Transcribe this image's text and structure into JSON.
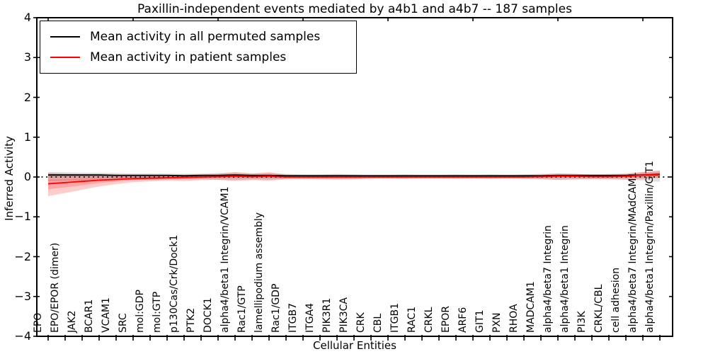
{
  "chart_data": {
    "type": "line",
    "title": "Paxillin-independent events mediated by a4b1 and a4b7 -- 187 samples",
    "xlabel": "Cellular Entities",
    "ylabel": "Inferred Activity",
    "ylim": [
      -4,
      4
    ],
    "yticks": [
      -4,
      -3,
      -2,
      -1,
      0,
      1,
      2,
      3,
      4
    ],
    "grid": false,
    "legend_position": "upper left",
    "zero_line_style": "dotted",
    "categories": [
      "EPO",
      "EPO/EPOR (dimer)",
      "JAK2",
      "BCAR1",
      "VCAM1",
      "SRC",
      "mol:GDP",
      "mol:GTP",
      "p130Cas/Crk/Dock1",
      "PTK2",
      "DOCK1",
      "alpha4/beta1 Integrin/VCAM1",
      "Rac1/GTP",
      "lamellipodium assembly",
      "Rac1/GDP",
      "ITGB7",
      "ITGA4",
      "PIK3R1",
      "PIK3CA",
      "CRK",
      "CBL",
      "ITGB1",
      "RAC1",
      "CRKL",
      "EPOR",
      "ARF6",
      "GIT1",
      "PXN",
      "RHOA",
      "MADCAM1",
      "alpha4/beta7 Integrin",
      "alpha4/beta1 Integrin",
      "PI3K",
      "CRKL/CBL",
      "cell adhesion",
      "alpha4/beta7 Integrin/MAdCAM1",
      "alpha4/beta1 Integrin/Paxillin/GIT1"
    ],
    "series": [
      {
        "name": "Mean activity in all permuted samples",
        "color": "#000000",
        "band_color": "rgba(0,0,0,0.12)",
        "values": [
          0.05,
          0.05,
          0.05,
          0.05,
          0.04,
          0.04,
          0.04,
          0.04,
          0.03,
          0.04,
          0.04,
          0.05,
          0.04,
          0.04,
          0.03,
          0.03,
          0.03,
          0.03,
          0.03,
          0.03,
          0.03,
          0.03,
          0.03,
          0.03,
          0.03,
          0.03,
          0.03,
          0.03,
          0.03,
          0.03,
          0.04,
          0.04,
          0.04,
          0.04,
          0.04,
          0.05,
          0.06
        ],
        "band_upper": [
          0.13,
          0.12,
          0.11,
          0.11,
          0.1,
          0.09,
          0.09,
          0.09,
          0.08,
          0.09,
          0.1,
          0.11,
          0.09,
          0.1,
          0.08,
          0.07,
          0.07,
          0.08,
          0.07,
          0.06,
          0.06,
          0.07,
          0.06,
          0.06,
          0.07,
          0.06,
          0.07,
          0.06,
          0.07,
          0.08,
          0.09,
          0.08,
          0.07,
          0.08,
          0.09,
          0.12,
          0.16
        ],
        "band_lower": [
          -0.11,
          -0.1,
          -0.09,
          -0.09,
          -0.08,
          -0.07,
          -0.07,
          -0.07,
          -0.06,
          -0.06,
          -0.07,
          -0.08,
          -0.06,
          -0.07,
          -0.05,
          -0.05,
          -0.05,
          -0.05,
          -0.05,
          -0.04,
          -0.04,
          -0.05,
          -0.04,
          -0.04,
          -0.05,
          -0.04,
          -0.05,
          -0.04,
          -0.05,
          -0.06,
          -0.07,
          -0.06,
          -0.05,
          -0.06,
          -0.07,
          -0.09,
          -0.12
        ]
      },
      {
        "name": "Mean activity in patient samples",
        "color": "#ff0000",
        "band_color": "rgba(255,0,0,0.20)",
        "values": [
          -0.17,
          -0.14,
          -0.11,
          -0.08,
          -0.06,
          -0.04,
          -0.03,
          -0.02,
          -0.01,
          0.0,
          0.01,
          0.02,
          0.01,
          0.02,
          0.0,
          0.0,
          0.0,
          0.0,
          0.0,
          0.0,
          0.0,
          0.0,
          0.0,
          0.0,
          0.0,
          0.0,
          0.0,
          0.0,
          0.0,
          0.01,
          0.02,
          0.02,
          0.01,
          0.01,
          0.02,
          0.05,
          0.07
        ],
        "band_upper": [
          0.1,
          0.08,
          0.07,
          0.06,
          0.06,
          0.06,
          0.06,
          0.05,
          0.06,
          0.07,
          0.08,
          0.13,
          0.09,
          0.12,
          0.06,
          0.05,
          0.05,
          0.06,
          0.05,
          0.04,
          0.04,
          0.04,
          0.04,
          0.04,
          0.04,
          0.04,
          0.04,
          0.04,
          0.05,
          0.06,
          0.09,
          0.08,
          0.06,
          0.06,
          0.08,
          0.13,
          0.16
        ],
        "band_lower": [
          -0.48,
          -0.4,
          -0.32,
          -0.24,
          -0.18,
          -0.13,
          -0.11,
          -0.09,
          -0.1,
          -0.08,
          -0.07,
          -0.1,
          -0.08,
          -0.09,
          -0.06,
          -0.05,
          -0.06,
          -0.07,
          -0.06,
          -0.04,
          -0.04,
          -0.04,
          -0.04,
          -0.04,
          -0.04,
          -0.04,
          -0.04,
          -0.04,
          -0.04,
          -0.05,
          -0.07,
          -0.06,
          -0.05,
          -0.05,
          -0.06,
          -0.05,
          -0.02
        ]
      }
    ]
  }
}
